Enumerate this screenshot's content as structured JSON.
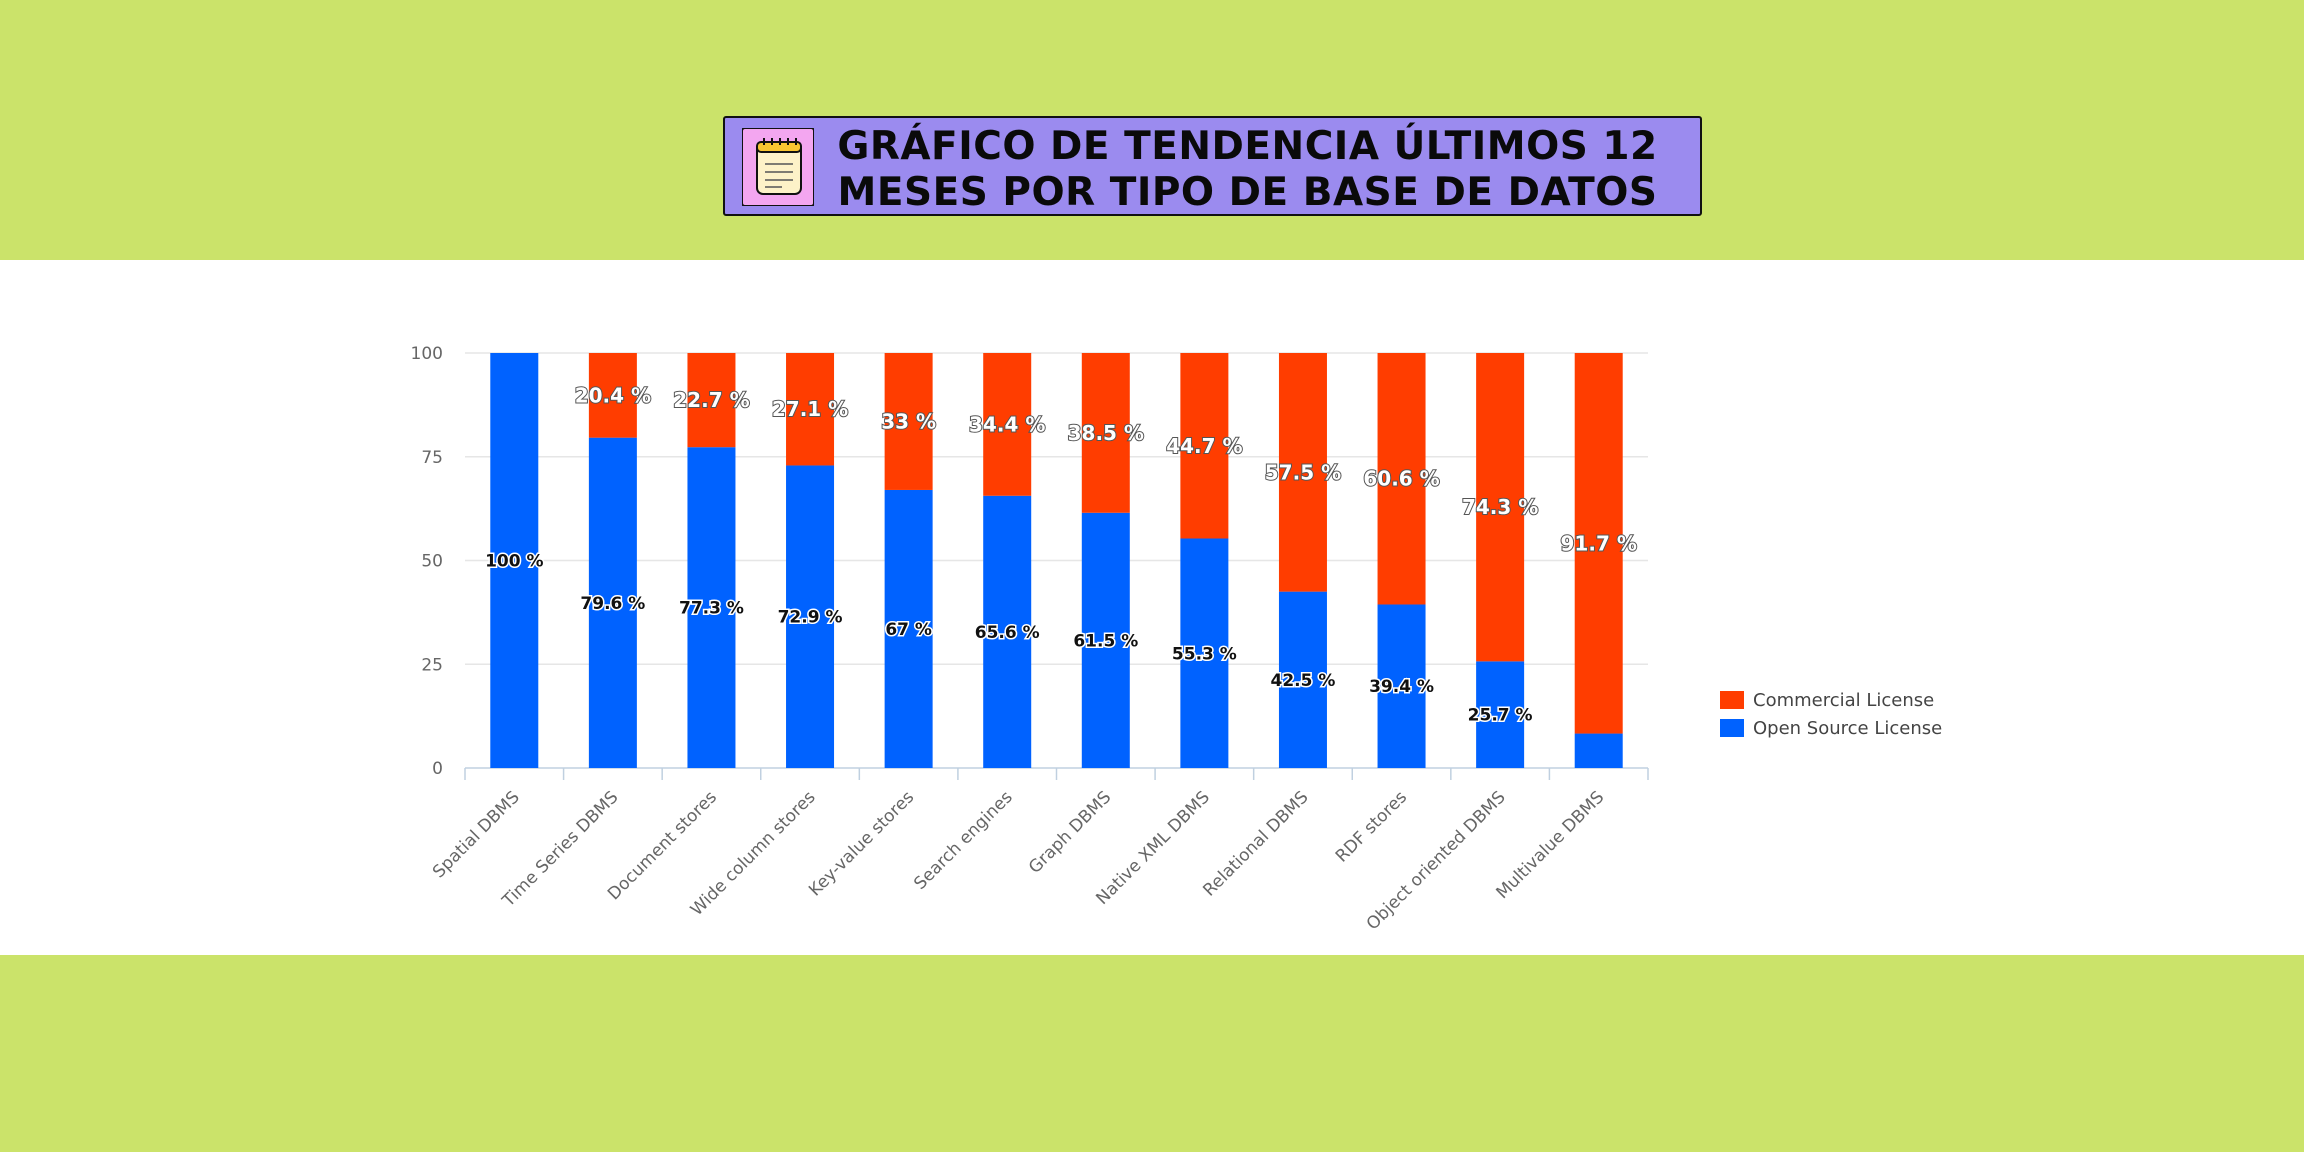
{
  "header": {
    "title_line1": "GRÁFICO DE TENDENCIA ÚLTIMOS 12",
    "title_line2": "MESES POR TIPO DE BASE DE DATOS",
    "icon": "notepad-icon"
  },
  "colors": {
    "background": "#cbe36a",
    "title_box": "#9b8bef",
    "commercial": "#ff3d00",
    "open_source": "#0062ff"
  },
  "chart_data": {
    "type": "bar",
    "stacked": true,
    "categories": [
      "Spatial DBMS",
      "Time Series DBMS",
      "Document stores",
      "Wide column stores",
      "Key-value stores",
      "Search engines",
      "Graph DBMS",
      "Native XML DBMS",
      "Relational DBMS",
      "RDF stores",
      "Object oriented DBMS",
      "Multivalue DBMS"
    ],
    "series": [
      {
        "name": "Open Source License",
        "values": [
          100,
          79.6,
          77.3,
          72.9,
          67,
          65.6,
          61.5,
          55.3,
          42.5,
          39.4,
          25.7,
          8.3
        ]
      },
      {
        "name": "Commercial License",
        "values": [
          0,
          20.4,
          22.7,
          27.1,
          33,
          34.4,
          38.5,
          44.7,
          57.5,
          60.6,
          74.3,
          91.7
        ]
      }
    ],
    "data_labels": {
      "Open Source License": [
        "100 %",
        "79.6 %",
        "77.3 %",
        "72.9 %",
        "67 %",
        "65.6 %",
        "61.5 %",
        "55.3 %",
        "42.5 %",
        "39.4 %",
        "25.7 %",
        ""
      ],
      "Commercial License": [
        "",
        "20.4 %",
        "22.7 %",
        "27.1 %",
        "33 %",
        "34.4 %",
        "38.5 %",
        "44.7 %",
        "57.5 %",
        "60.6 %",
        "74.3 %",
        "91.7 %"
      ]
    },
    "yticks": [
      "0",
      "25",
      "50",
      "75",
      "100"
    ],
    "ylim": [
      0,
      100
    ],
    "legend": [
      "Commercial License",
      "Open Source License"
    ],
    "legend_position": "right",
    "grid": true
  }
}
